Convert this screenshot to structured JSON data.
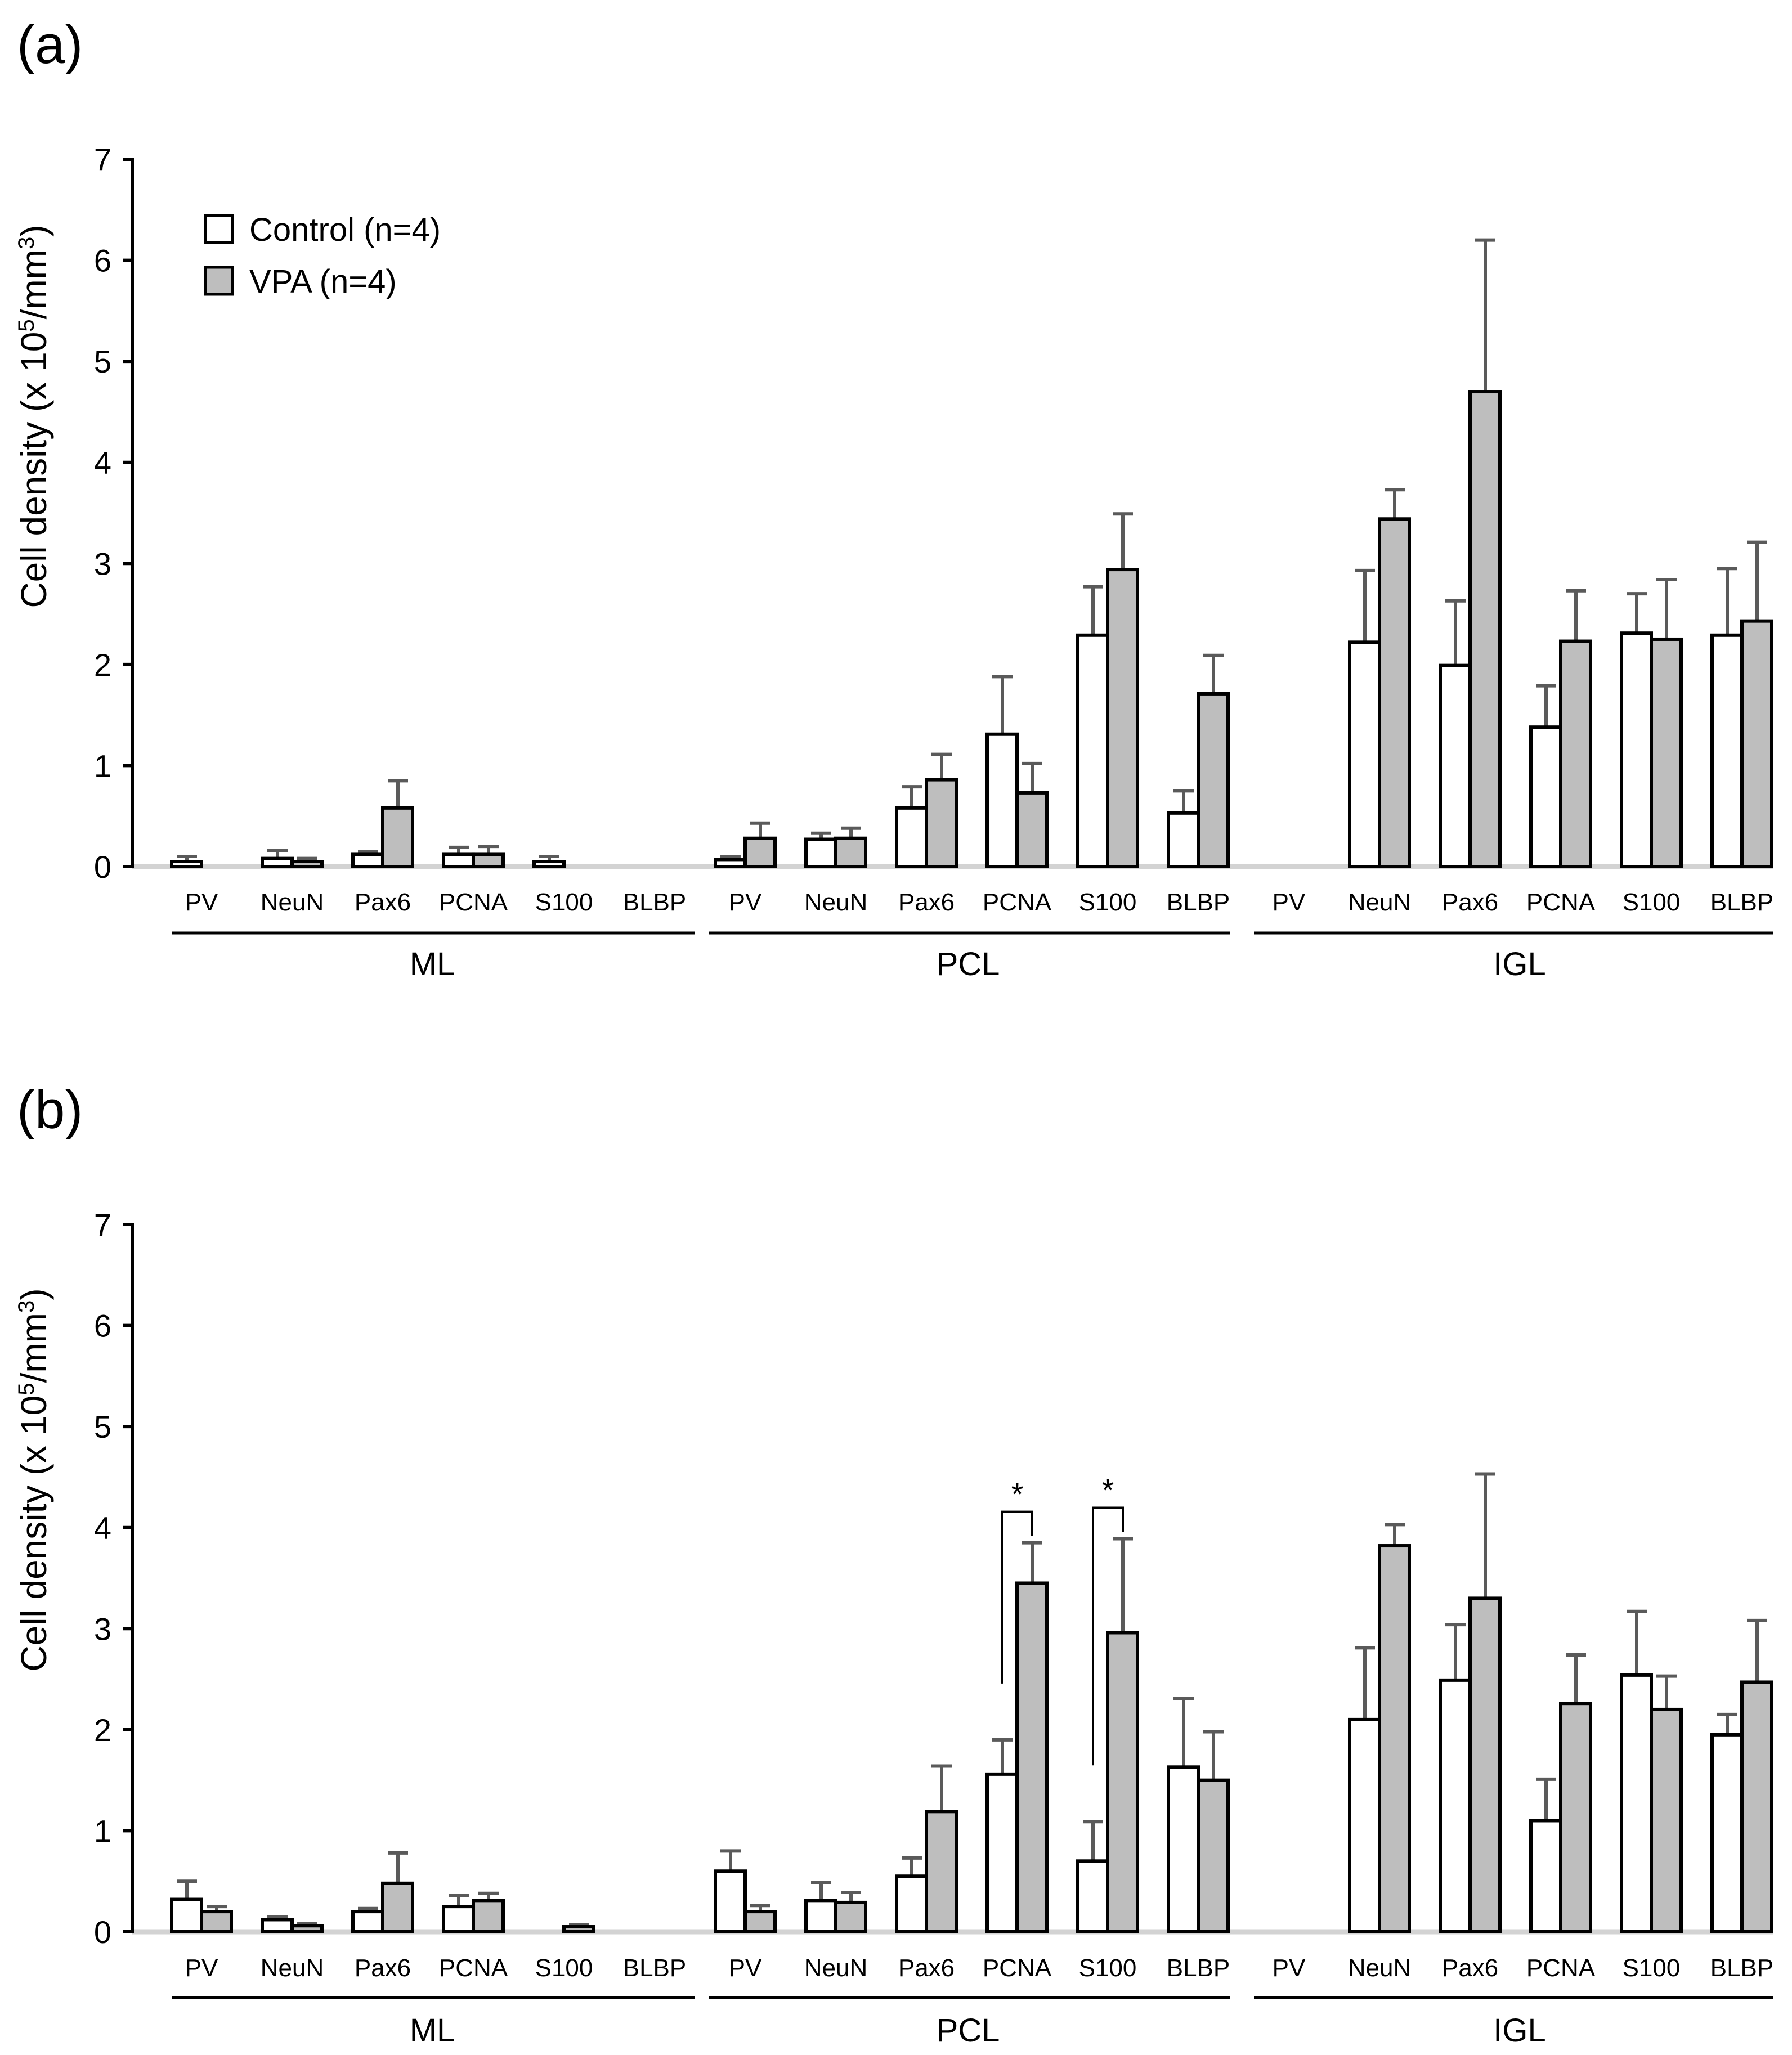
{
  "colors": {
    "control": "#ffffff",
    "vpa": "#bebebe",
    "error_bar": "#5a5a5a",
    "axis": "#000000",
    "baseline": "#d3d3d3"
  },
  "legend": {
    "control": "Control (n=4)",
    "vpa": "VPA (n=4)"
  },
  "chart_data": [
    {
      "type": "bar",
      "panel_label": "(a)",
      "ylabel_main": "Cell density (x 10",
      "ylabel_sup1": "5",
      "ylabel_mid": "/mm",
      "ylabel_sup2": "3",
      "ylabel_end": ")",
      "ylim": [
        0,
        7
      ],
      "yticks": [
        "0",
        "1",
        "2",
        "3",
        "4",
        "5",
        "6",
        "7"
      ],
      "legend_position": "top-left",
      "groups": [
        {
          "label": "ML",
          "markers": [
            "PV",
            "NeuN",
            "Pax6",
            "PCNA",
            "S100",
            "BLBP"
          ],
          "control": [
            0.05,
            0.08,
            0.12,
            0.12,
            0.05,
            0
          ],
          "control_err": [
            0.05,
            0.08,
            0.03,
            0.07,
            0.05,
            0
          ],
          "vpa": [
            0,
            0.05,
            0.58,
            0.12,
            0,
            0
          ],
          "vpa_err": [
            0,
            0.03,
            0.27,
            0.08,
            0,
            0
          ]
        },
        {
          "label": "PCL",
          "markers": [
            "PV",
            "NeuN",
            "Pax6",
            "PCNA",
            "S100",
            "BLBP"
          ],
          "control": [
            0.07,
            0.27,
            0.58,
            1.31,
            2.29,
            0.53
          ],
          "control_err": [
            0.03,
            0.06,
            0.21,
            0.57,
            0.48,
            0.22
          ],
          "vpa": [
            0.28,
            0.28,
            0.86,
            0.73,
            2.94,
            1.71
          ],
          "vpa_err": [
            0.15,
            0.1,
            0.25,
            0.29,
            0.55,
            0.38
          ]
        },
        {
          "label": "IGL",
          "markers": [
            "PV",
            "NeuN",
            "Pax6",
            "PCNA",
            "S100",
            "BLBP"
          ],
          "control": [
            0,
            2.22,
            1.99,
            1.38,
            2.31,
            2.29
          ],
          "control_err": [
            0,
            0.71,
            0.64,
            0.41,
            0.39,
            0.66
          ],
          "vpa": [
            0,
            3.44,
            4.7,
            2.23,
            2.25,
            2.43
          ],
          "vpa_err": [
            0,
            0.29,
            1.5,
            0.5,
            0.59,
            0.78
          ]
        }
      ],
      "significance": []
    },
    {
      "type": "bar",
      "panel_label": "(b)",
      "ylabel_main": "Cell density (x 10",
      "ylabel_sup1": "5",
      "ylabel_mid": "/mm",
      "ylabel_sup2": "3",
      "ylabel_end": ")",
      "ylim": [
        0,
        7
      ],
      "yticks": [
        "0",
        "1",
        "2",
        "3",
        "4",
        "5",
        "6",
        "7"
      ],
      "groups": [
        {
          "label": "ML",
          "markers": [
            "PV",
            "NeuN",
            "Pax6",
            "PCNA",
            "S100",
            "BLBP"
          ],
          "control": [
            0.32,
            0.12,
            0.2,
            0.25,
            0,
            0
          ],
          "control_err": [
            0.18,
            0.03,
            0.03,
            0.11,
            0,
            0
          ],
          "vpa": [
            0.2,
            0.06,
            0.48,
            0.31,
            0.05,
            0
          ],
          "vpa_err": [
            0.05,
            0.02,
            0.3,
            0.07,
            0.02,
            0
          ]
        },
        {
          "label": "PCL",
          "markers": [
            "PV",
            "NeuN",
            "Pax6",
            "PCNA",
            "S100",
            "BLBP"
          ],
          "control": [
            0.6,
            0.31,
            0.55,
            1.56,
            0.7,
            1.63
          ],
          "control_err": [
            0.2,
            0.18,
            0.18,
            0.34,
            0.39,
            0.68
          ],
          "vpa": [
            0.2,
            0.29,
            1.19,
            3.45,
            2.96,
            1.5
          ],
          "vpa_err": [
            0.06,
            0.1,
            0.45,
            0.4,
            0.93,
            0.48
          ]
        },
        {
          "label": "IGL",
          "markers": [
            "PV",
            "NeuN",
            "Pax6",
            "PCNA",
            "S100",
            "BLBP"
          ],
          "control": [
            0,
            2.1,
            2.49,
            1.1,
            2.54,
            1.95
          ],
          "control_err": [
            0,
            0.71,
            0.55,
            0.41,
            0.63,
            0.2
          ],
          "vpa": [
            0,
            3.82,
            3.3,
            2.26,
            2.2,
            2.47
          ],
          "vpa_err": [
            0,
            0.21,
            1.23,
            0.48,
            0.33,
            0.61
          ]
        }
      ],
      "significance": [
        {
          "group": 1,
          "marker": 3,
          "label": "*"
        },
        {
          "group": 1,
          "marker": 4,
          "label": "*"
        }
      ]
    }
  ]
}
